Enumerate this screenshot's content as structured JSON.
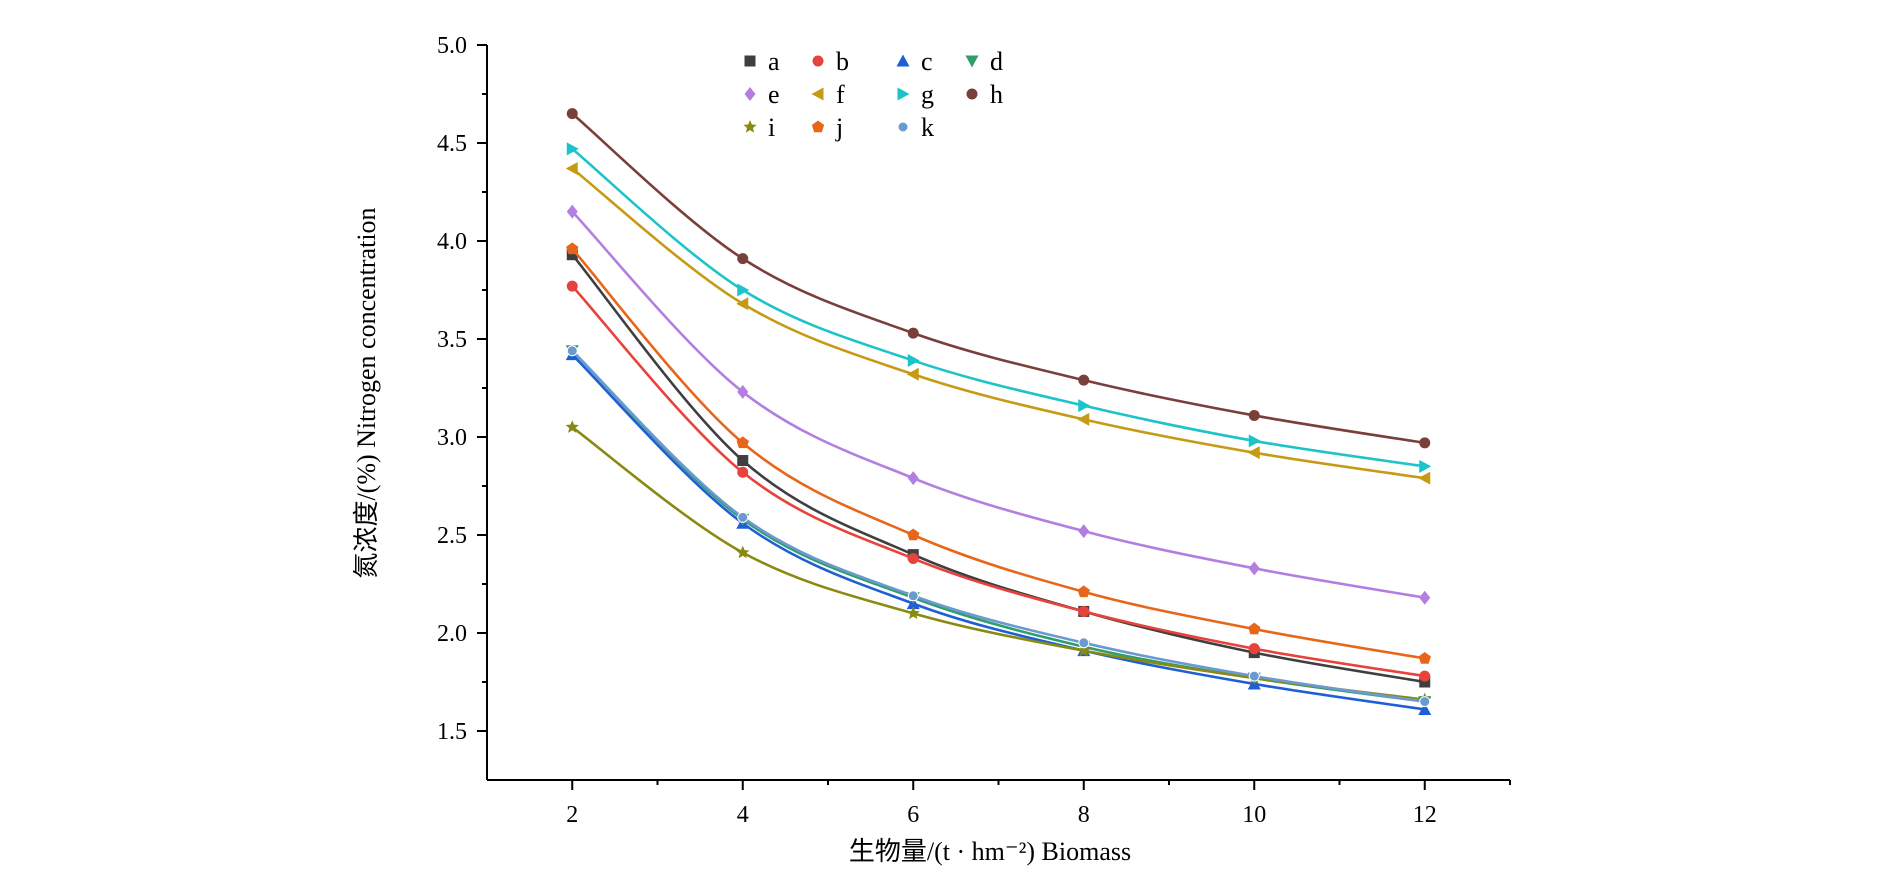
{
  "chart_data": {
    "type": "line",
    "title": "",
    "xlabel": "生物量/(t · hm⁻²) Biomass",
    "ylabel": "氮浓度/(%) Nitrogen concentration",
    "x": [
      2,
      4,
      6,
      8,
      10,
      12
    ],
    "xlim": [
      1,
      13
    ],
    "ylim": [
      1.25,
      5.0
    ],
    "xticks": [
      "2",
      "4",
      "6",
      "8",
      "10",
      "12"
    ],
    "yticks": [
      "1.5",
      "2.0",
      "2.5",
      "3.0",
      "3.5",
      "4.0",
      "4.5",
      "5.0"
    ],
    "legend_position": "top",
    "series": [
      {
        "name": "a",
        "color": "#3f3f3f",
        "marker": "square",
        "values": [
          3.93,
          2.88,
          2.4,
          2.11,
          1.9,
          1.75
        ]
      },
      {
        "name": "b",
        "color": "#e8423c",
        "marker": "circle",
        "values": [
          3.77,
          2.82,
          2.38,
          2.11,
          1.92,
          1.78
        ]
      },
      {
        "name": "c",
        "color": "#1f5fd6",
        "marker": "triangle-up",
        "values": [
          3.42,
          2.56,
          2.15,
          1.91,
          1.74,
          1.61
        ]
      },
      {
        "name": "d",
        "color": "#2e9e6a",
        "marker": "triangle-down",
        "values": [
          3.44,
          2.58,
          2.18,
          1.93,
          1.77,
          1.65
        ]
      },
      {
        "name": "e",
        "color": "#b27fe0",
        "marker": "diamond",
        "values": [
          4.15,
          3.23,
          2.79,
          2.52,
          2.33,
          2.18
        ]
      },
      {
        "name": "f",
        "color": "#c79a14",
        "marker": "triangle-left",
        "values": [
          4.37,
          3.68,
          3.32,
          3.09,
          2.92,
          2.79
        ]
      },
      {
        "name": "g",
        "color": "#1cc4c9",
        "marker": "triangle-right",
        "values": [
          4.47,
          3.75,
          3.39,
          3.16,
          2.98,
          2.85
        ]
      },
      {
        "name": "h",
        "color": "#7a3f3b",
        "marker": "circle",
        "values": [
          4.65,
          3.91,
          3.53,
          3.29,
          3.11,
          2.97
        ]
      },
      {
        "name": "i",
        "color": "#8a8a12",
        "marker": "star",
        "values": [
          3.05,
          2.41,
          2.1,
          1.91,
          1.77,
          1.66
        ]
      },
      {
        "name": "j",
        "color": "#e8661a",
        "marker": "pentagon",
        "values": [
          3.96,
          2.97,
          2.5,
          2.21,
          2.02,
          1.87
        ]
      },
      {
        "name": "k",
        "color": "#6b9ad1",
        "marker": "circle-small",
        "values": [
          3.44,
          2.59,
          2.19,
          1.95,
          1.78,
          1.65
        ]
      }
    ]
  }
}
